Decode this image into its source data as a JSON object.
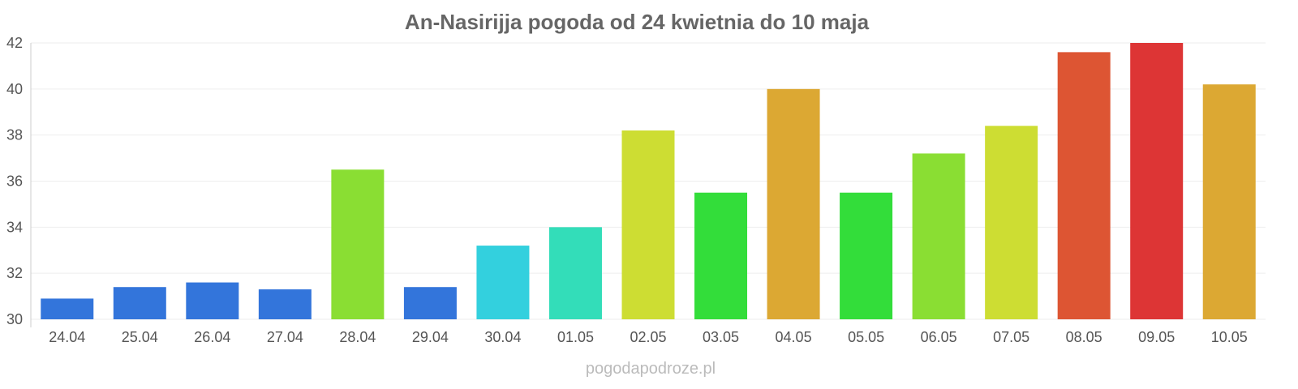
{
  "chart_data": {
    "type": "bar",
    "title": "An-Nasirijja pogoda od 24 kwietnia do 10 maja",
    "xlabel": "",
    "ylabel": "",
    "ylim": [
      30,
      42
    ],
    "yticks": [
      30,
      32,
      34,
      36,
      38,
      40,
      42
    ],
    "grid": true,
    "categories": [
      "24.04",
      "25.04",
      "26.04",
      "27.04",
      "28.04",
      "29.04",
      "30.04",
      "01.05",
      "02.05",
      "03.05",
      "04.05",
      "05.05",
      "06.05",
      "07.05",
      "08.05",
      "09.05",
      "10.05"
    ],
    "values": [
      30.9,
      31.4,
      31.6,
      31.3,
      36.5,
      31.4,
      33.2,
      34.0,
      38.2,
      35.5,
      40.0,
      35.5,
      37.2,
      38.4,
      41.6,
      42.0,
      40.2
    ],
    "colors": [
      "#3375db",
      "#3375db",
      "#3375db",
      "#3375db",
      "#8ade33",
      "#3375db",
      "#33d0de",
      "#33ddb9",
      "#cddd33",
      "#33dd3a",
      "#dca833",
      "#33dd3a",
      "#8ade33",
      "#cddd33",
      "#dd5533",
      "#dd3535",
      "#dca833"
    ]
  },
  "credit": "pogodapodroze.pl"
}
